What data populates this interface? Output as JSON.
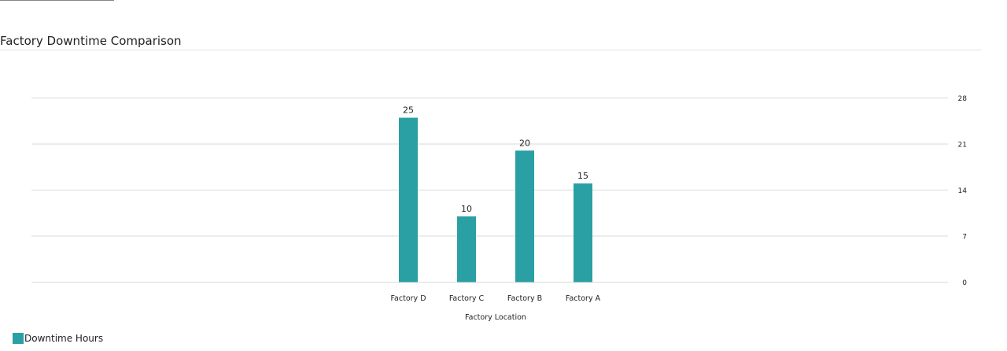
{
  "colors": {
    "bar": "#2aa0a4",
    "grid": "#d9d9d9",
    "text": "#222222"
  },
  "chart_data": {
    "type": "bar",
    "title": "Factory Downtime Comparison",
    "xlabel": "Factory Location",
    "ylabel": "",
    "categories": [
      "Factory D",
      "Factory C",
      "Factory B",
      "Factory A"
    ],
    "series": [
      {
        "name": "Downtime Hours",
        "values": [
          25,
          10,
          20,
          15
        ]
      }
    ],
    "ylim": [
      0,
      28
    ],
    "yticks": [
      0,
      7,
      14,
      21,
      28
    ],
    "y_axis_position": "right",
    "grid": true,
    "legend_position": "bottom-left"
  }
}
